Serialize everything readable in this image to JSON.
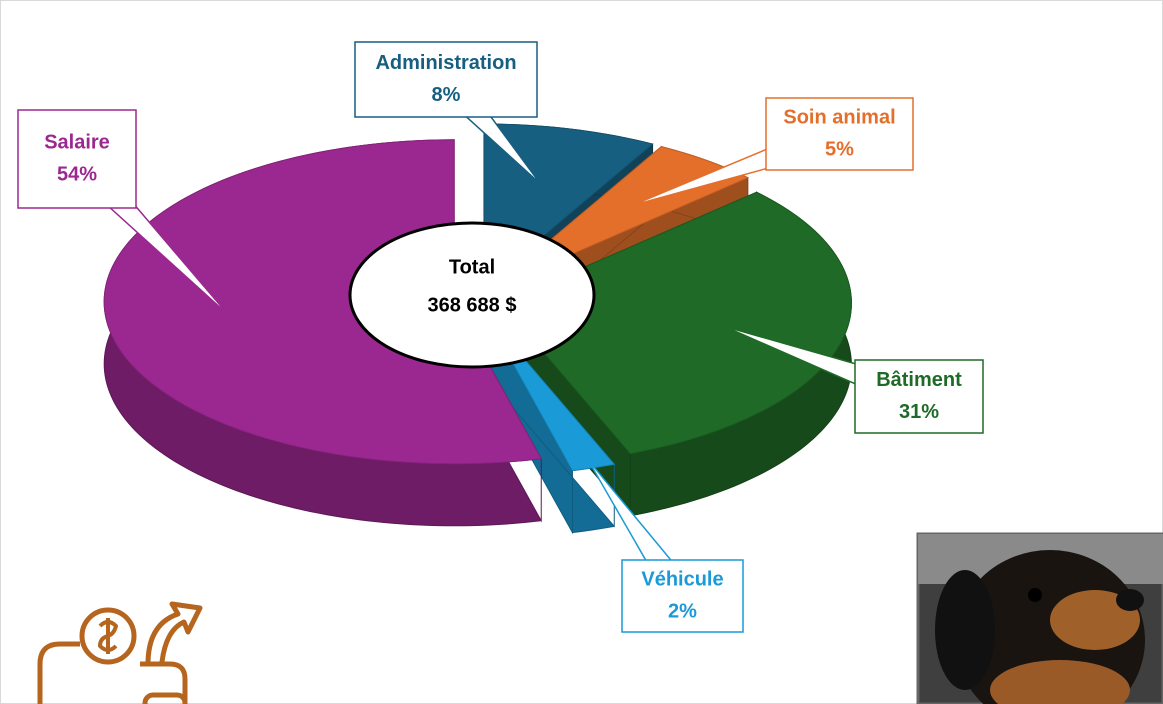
{
  "chart_data": {
    "type": "pie",
    "categories": [
      "Administration",
      "Soin animal",
      "Bâtiment",
      "Véhicule",
      "Salaire"
    ],
    "values": [
      8,
      5,
      31,
      2,
      54
    ],
    "value_labels": [
      "8%",
      "5%",
      "31%",
      "2%",
      "54%"
    ],
    "colors": [
      "#175f80",
      "#e36f2b",
      "#1f6a27",
      "#1a9ad6",
      "#9b2890"
    ],
    "center_label": {
      "title": "Total",
      "value": "368 688 $"
    }
  }
}
